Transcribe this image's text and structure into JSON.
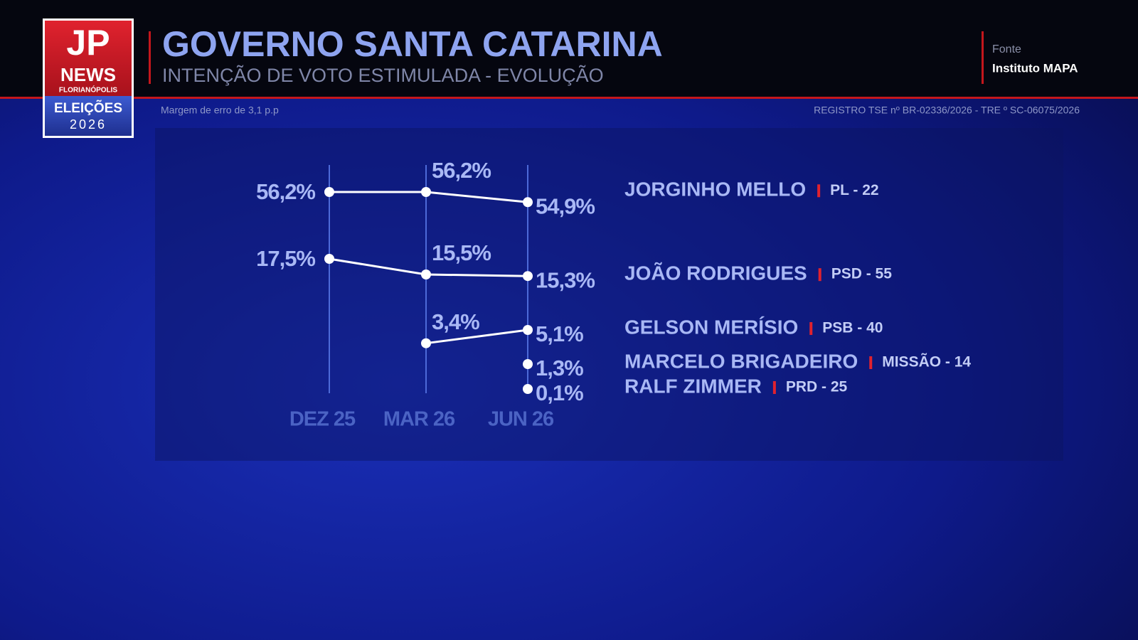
{
  "logo": {
    "mark": "JP",
    "brand": "NEWS",
    "city": "FLORIANÓPOLIS",
    "event": "ELEIÇÕES",
    "year": "2026"
  },
  "header": {
    "source_label": "Fonte",
    "source": "Instituto MAPA",
    "margin": "Margem de erro de 3,1 p.p",
    "registry": "REGISTRO TSE nº BR-02336/2026 - TRE º SC-06075/2026"
  },
  "chart_data": {
    "type": "line",
    "title": "GOVERNO SANTA CATARINA",
    "subtitle": "INTENÇÃO DE VOTO ESTIMULADA - EVOLUÇÃO",
    "categories": [
      "DEZ 25",
      "MAR 26",
      "JUN 26"
    ],
    "series": [
      {
        "name": "JORGINHO MELLO",
        "party": "PL - 22",
        "color": "#ffffff",
        "values": [
          56.2,
          56.2,
          54.9
        ],
        "value_labels": [
          "56,2%",
          "56,2%",
          "54,9%"
        ]
      },
      {
        "name": "JOÃO RODRIGUES",
        "party": "PSD - 55",
        "color": "#ffffff",
        "values": [
          17.5,
          15.5,
          15.3
        ],
        "value_labels": [
          "17,5%",
          "15,5%",
          "15,3%"
        ]
      },
      {
        "name": "GELSON MERÍSIO",
        "party": "PSB - 40",
        "color": "#ffffff",
        "values": [
          null,
          3.4,
          5.1
        ],
        "value_labels": [
          null,
          "3,4%",
          "5,1%"
        ]
      },
      {
        "name": "MARCELO BRIGADEIRO",
        "party": "MISSÃO - 14",
        "color": "#ffffff",
        "values": [
          null,
          null,
          1.3
        ],
        "value_labels": [
          null,
          null,
          "1,3%"
        ]
      },
      {
        "name": "RALF ZIMMER",
        "party": "PRD - 25",
        "color": "#ffffff",
        "values": [
          null,
          null,
          0.1
        ],
        "value_labels": [
          null,
          null,
          "0,1%"
        ]
      }
    ]
  }
}
